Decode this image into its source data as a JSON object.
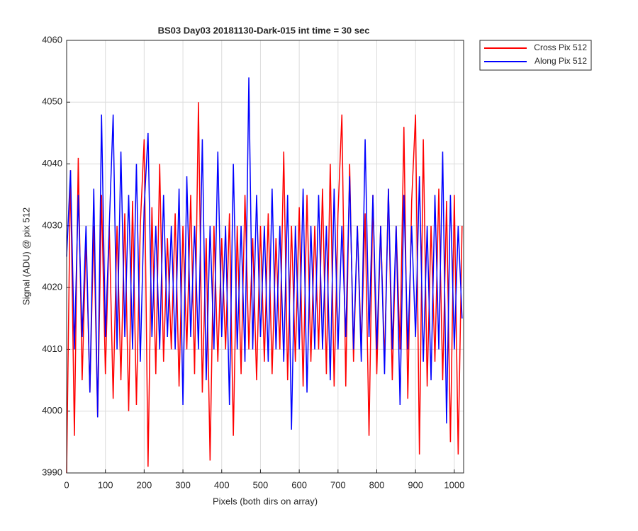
{
  "chart_data": {
    "type": "line",
    "title": "BS03 Day03 20181130-Dark-015 int time = 30 sec",
    "x_label": "Pixels (both dirs on array)",
    "y_label": "Signal (ADU) @ pix 512",
    "x": [
      0,
      10,
      20,
      30,
      40,
      50,
      60,
      70,
      80,
      90,
      100,
      110,
      120,
      130,
      140,
      150,
      160,
      170,
      180,
      190,
      200,
      210,
      220,
      230,
      240,
      250,
      260,
      270,
      280,
      290,
      300,
      310,
      320,
      330,
      340,
      350,
      360,
      370,
      380,
      390,
      400,
      410,
      420,
      430,
      440,
      450,
      460,
      470,
      480,
      490,
      500,
      510,
      520,
      530,
      540,
      550,
      560,
      570,
      580,
      590,
      600,
      610,
      620,
      630,
      640,
      650,
      660,
      670,
      680,
      690,
      700,
      710,
      720,
      730,
      740,
      750,
      760,
      770,
      780,
      790,
      800,
      810,
      820,
      830,
      840,
      850,
      860,
      870,
      880,
      890,
      900,
      910,
      920,
      930,
      940,
      950,
      960,
      970,
      980,
      990,
      1000,
      1010,
      1020
    ],
    "series": [
      {
        "name": "Cross Pix 512",
        "color": "#ff0000",
        "values": [
          3990,
          4039,
          3996,
          4041,
          4005,
          4028,
          4003,
          4030,
          3999,
          4035,
          4006,
          4030,
          4002,
          4030,
          4005,
          4032,
          4000,
          4034,
          4001,
          4030,
          4044,
          3991,
          4033,
          4006,
          4040,
          4008,
          4028,
          4010,
          4032,
          4004,
          4030,
          4010,
          4035,
          4006,
          4050,
          4003,
          4028,
          3992,
          4030,
          4008,
          4028,
          4010,
          4032,
          3996,
          4030,
          4006,
          4035,
          4010,
          4028,
          4005,
          4030,
          4008,
          4032,
          4006,
          4028,
          4010,
          4042,
          4005,
          4030,
          4008,
          4033,
          4004,
          4035,
          4008,
          4030,
          4010,
          4036,
          4006,
          4040,
          4004,
          4032,
          4048,
          4004,
          4040,
          4008,
          4030,
          4010,
          4032,
          3996,
          4035,
          4006,
          4030,
          4008,
          4036,
          4005,
          4030,
          4010,
          4046,
          4002,
          4034,
          4048,
          3993,
          4044,
          4004,
          4030,
          4008,
          4036,
          4005,
          4034,
          3995,
          4035,
          3993,
          4030
        ]
      },
      {
        "name": "Along Pix 512",
        "color": "#0000ff",
        "values": [
          4025,
          4039,
          4010,
          4035,
          4012,
          4030,
          4003,
          4036,
          3999,
          4048,
          4012,
          4030,
          4048,
          4010,
          4042,
          4012,
          4035,
          4010,
          4040,
          4008,
          4033,
          4045,
          4012,
          4030,
          4010,
          4035,
          4012,
          4030,
          4010,
          4036,
          4001,
          4038,
          4012,
          4030,
          4010,
          4044,
          4005,
          4030,
          4010,
          4042,
          4012,
          4030,
          4001,
          4040,
          4010,
          4030,
          4008,
          4054,
          4010,
          4035,
          4012,
          4030,
          4008,
          4036,
          4010,
          4030,
          4008,
          4035,
          3997,
          4030,
          4010,
          4036,
          4003,
          4030,
          4010,
          4035,
          4010,
          4030,
          4005,
          4036,
          4010,
          4030,
          4012,
          4038,
          4010,
          4030,
          4008,
          4044,
          4012,
          4035,
          4010,
          4030,
          4006,
          4036,
          4010,
          4030,
          4001,
          4035,
          4010,
          4030,
          4012,
          4038,
          4008,
          4030,
          4005,
          4035,
          4010,
          4042,
          3998,
          4035,
          4010,
          4030,
          4015
        ]
      }
    ],
    "xlim": [
      0,
      1024
    ],
    "xticks": [
      0,
      100,
      200,
      300,
      400,
      500,
      600,
      700,
      800,
      900,
      1000
    ],
    "ylim": [
      3990,
      4060
    ],
    "yticks": [
      3990,
      4000,
      4010,
      4020,
      4030,
      4040,
      4050,
      4060
    ],
    "grid": true,
    "legend": "northeastoutside"
  }
}
